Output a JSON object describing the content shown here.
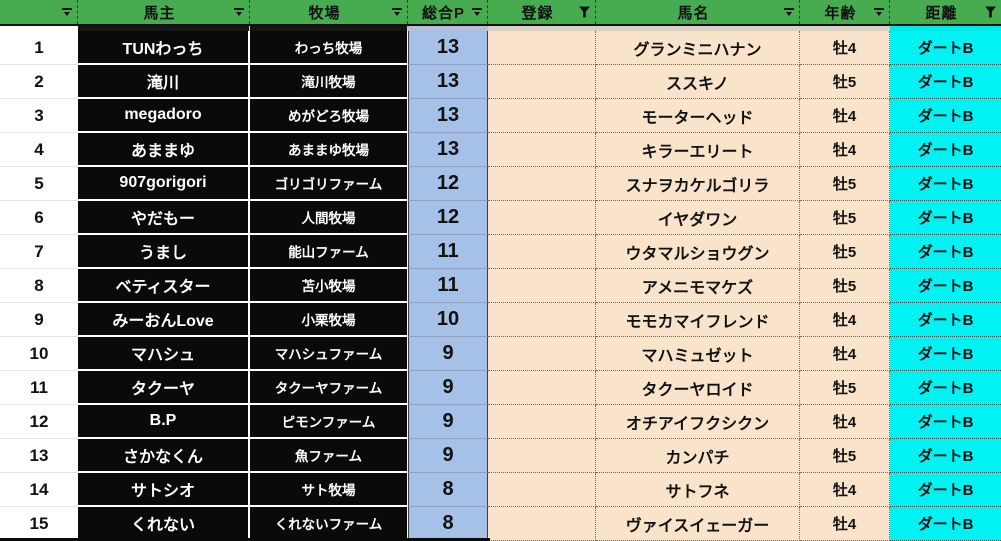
{
  "app": {
    "type": "spreadsheet-filtered-table"
  },
  "colors": {
    "header_green": "#47AB50",
    "points_blue": "#A6C1E8",
    "cell_peach": "#FAE3CB",
    "distance_cyan": "#00F2F2",
    "owner_cell_black": "#0A0A0A"
  },
  "icons": {
    "dropdown": "filter-dropdown-icon",
    "funnel": "filter-funnel-icon"
  },
  "table": {
    "headers": [
      {
        "id": "rownum",
        "label": "",
        "filter": "dropdown"
      },
      {
        "id": "owner",
        "label": "馬主",
        "filter": "dropdown"
      },
      {
        "id": "farm",
        "label": "牧場",
        "filter": "dropdown"
      },
      {
        "id": "points",
        "label": "総合P",
        "filter": "dropdown"
      },
      {
        "id": "registration",
        "label": "登録",
        "filter": "funnel"
      },
      {
        "id": "horse",
        "label": "馬名",
        "filter": "dropdown"
      },
      {
        "id": "age",
        "label": "年齢",
        "filter": "dropdown"
      },
      {
        "id": "distance",
        "label": "距離",
        "filter": "funnel"
      }
    ],
    "rows": [
      {
        "num": "1",
        "owner": "TUNわっち",
        "farm": "わっち牧場",
        "points": "13",
        "registration": "",
        "horse": "グランミニハナン",
        "age": "牡4",
        "distance": "ダートB"
      },
      {
        "num": "2",
        "owner": "滝川",
        "farm": "滝川牧場",
        "points": "13",
        "registration": "",
        "horse": "ススキノ",
        "age": "牡5",
        "distance": "ダートB"
      },
      {
        "num": "3",
        "owner": "megadoro",
        "farm": "めがどろ牧場",
        "points": "13",
        "registration": "",
        "horse": "モーターヘッド",
        "age": "牡4",
        "distance": "ダートB"
      },
      {
        "num": "4",
        "owner": "あままゆ",
        "farm": "あままゆ牧場",
        "points": "13",
        "registration": "",
        "horse": "キラーエリート",
        "age": "牡4",
        "distance": "ダートB"
      },
      {
        "num": "5",
        "owner": "907gorigori",
        "farm": "ゴリゴリファーム",
        "points": "12",
        "registration": "",
        "horse": "スナヲカケルゴリラ",
        "age": "牡5",
        "distance": "ダートB"
      },
      {
        "num": "6",
        "owner": "やだもー",
        "farm": "人間牧場",
        "points": "12",
        "registration": "",
        "horse": "イヤダワン",
        "age": "牡5",
        "distance": "ダートB"
      },
      {
        "num": "7",
        "owner": "うまし",
        "farm": "能山ファーム",
        "points": "11",
        "registration": "",
        "horse": "ウタマルショウグン",
        "age": "牡5",
        "distance": "ダートB"
      },
      {
        "num": "8",
        "owner": "ベティスター",
        "farm": "苫小牧場",
        "points": "11",
        "registration": "",
        "horse": "アメニモマケズ",
        "age": "牡5",
        "distance": "ダートB"
      },
      {
        "num": "9",
        "owner": "みーおんLove",
        "farm": "小栗牧場",
        "points": "10",
        "registration": "",
        "horse": "モモカマイフレンド",
        "age": "牡4",
        "distance": "ダートB"
      },
      {
        "num": "10",
        "owner": "マハシュ",
        "farm": "マハシュファーム",
        "points": "9",
        "registration": "",
        "horse": "マハミュゼット",
        "age": "牡4",
        "distance": "ダートB"
      },
      {
        "num": "11",
        "owner": "タクーヤ",
        "farm": "タクーヤファーム",
        "points": "9",
        "registration": "",
        "horse": "タクーヤロイド",
        "age": "牡5",
        "distance": "ダートB"
      },
      {
        "num": "12",
        "owner": "B.P",
        "farm": "ピモンファーム",
        "points": "9",
        "registration": "",
        "horse": "オチアイフクシクン",
        "age": "牡4",
        "distance": "ダートB"
      },
      {
        "num": "13",
        "owner": "さかなくん",
        "farm": "魚ファーム",
        "points": "9",
        "registration": "",
        "horse": "カンパチ",
        "age": "牡5",
        "distance": "ダートB"
      },
      {
        "num": "14",
        "owner": "サトシオ",
        "farm": "サト牧場",
        "points": "8",
        "registration": "",
        "horse": "サトフネ",
        "age": "牡4",
        "distance": "ダートB"
      },
      {
        "num": "15",
        "owner": "くれない",
        "farm": "くれないファーム",
        "points": "8",
        "registration": "",
        "horse": "ヴァイスイェーガー",
        "age": "牡4",
        "distance": "ダートB"
      }
    ]
  }
}
